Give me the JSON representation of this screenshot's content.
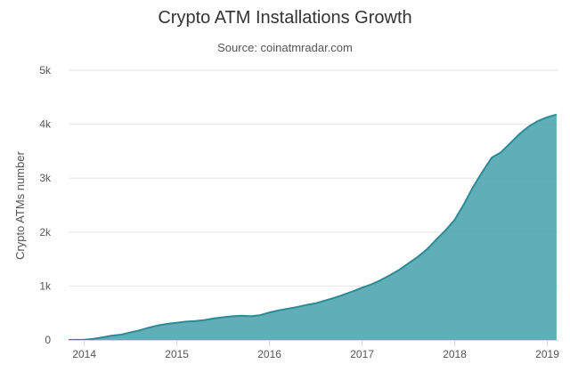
{
  "chart_data": {
    "type": "area",
    "title": "Crypto ATM Installations Growth",
    "subtitle": "Source: coinatmradar.com",
    "xlabel": "",
    "ylabel": "Crypto ATMs number",
    "xlim": [
      2013.83,
      2019.12
    ],
    "ylim": [
      0,
      5000
    ],
    "x_ticks": [
      {
        "value": 2014,
        "label": "2014"
      },
      {
        "value": 2015,
        "label": "2015"
      },
      {
        "value": 2016,
        "label": "2016"
      },
      {
        "value": 2017,
        "label": "2017"
      },
      {
        "value": 2018,
        "label": "2018"
      },
      {
        "value": 2019,
        "label": "2019"
      }
    ],
    "y_ticks": [
      {
        "value": 0,
        "label": "0"
      },
      {
        "value": 1000,
        "label": "1k"
      },
      {
        "value": 2000,
        "label": "2k"
      },
      {
        "value": 3000,
        "label": "3k"
      },
      {
        "value": 4000,
        "label": "4k"
      },
      {
        "value": 5000,
        "label": "5k"
      }
    ],
    "grid": true,
    "color": "#4aa3ae",
    "line_color": "#2e8a96",
    "x": [
      2013.83,
      2014.0,
      2014.1,
      2014.2,
      2014.3,
      2014.4,
      2014.5,
      2014.6,
      2014.7,
      2014.8,
      2014.9,
      2015.0,
      2015.1,
      2015.2,
      2015.3,
      2015.4,
      2015.5,
      2015.6,
      2015.7,
      2015.8,
      2015.9,
      2016.0,
      2016.1,
      2016.2,
      2016.3,
      2016.4,
      2016.5,
      2016.6,
      2016.7,
      2016.8,
      2016.9,
      2017.0,
      2017.1,
      2017.2,
      2017.3,
      2017.4,
      2017.5,
      2017.6,
      2017.7,
      2017.8,
      2017.9,
      2018.0,
      2018.1,
      2018.2,
      2018.3,
      2018.4,
      2018.5,
      2018.6,
      2018.7,
      2018.8,
      2018.9,
      2019.0,
      2019.1
    ],
    "values": [
      0,
      5,
      20,
      50,
      80,
      100,
      140,
      180,
      230,
      270,
      300,
      320,
      340,
      350,
      370,
      400,
      420,
      440,
      450,
      440,
      460,
      510,
      550,
      580,
      610,
      650,
      680,
      730,
      780,
      840,
      900,
      970,
      1030,
      1110,
      1200,
      1300,
      1420,
      1540,
      1680,
      1860,
      2030,
      2230,
      2520,
      2840,
      3120,
      3380,
      3480,
      3650,
      3820,
      3960,
      4060,
      4130,
      4180
    ]
  }
}
